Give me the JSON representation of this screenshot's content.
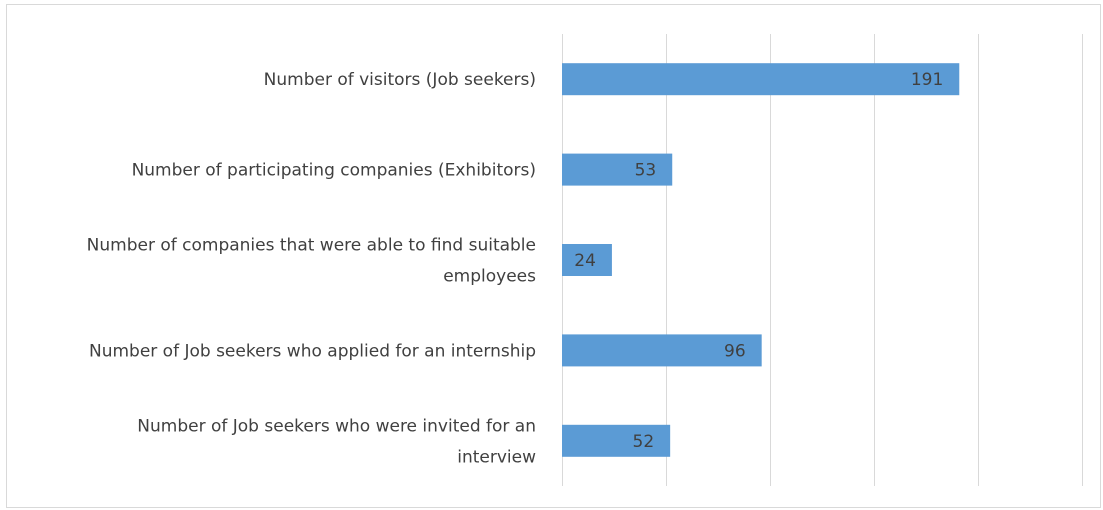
{
  "chart_data": {
    "type": "bar",
    "orientation": "horizontal",
    "title": "",
    "xlabel": "",
    "ylabel": "",
    "xlim": [
      0,
      250
    ],
    "x_major_unit": 50,
    "grid": "vertical",
    "legend": "none",
    "bar_color": "#5b9bd5",
    "grid_color": "#d9d9d9",
    "data_labels": "inside-end",
    "categories": [
      "Number of visitors (Job seekers)",
      "Number of  participating companies  (Exhibitors)",
      "Number of companies that were able to find suitable employees",
      "Number of Job seekers who applied for an internship",
      "Number of Job seekers who were invited for an interview"
    ],
    "category_lines": [
      [
        "Number of visitors (Job seekers)"
      ],
      [
        "Number of  participating companies  (Exhibitors)"
      ],
      [
        "Number of companies that were able to find suitable",
        "employees"
      ],
      [
        "Number of Job seekers who applied for an internship"
      ],
      [
        "Number of Job seekers who were invited for an",
        "interview"
      ]
    ],
    "values": [
      191,
      53,
      24,
      96,
      52
    ]
  }
}
